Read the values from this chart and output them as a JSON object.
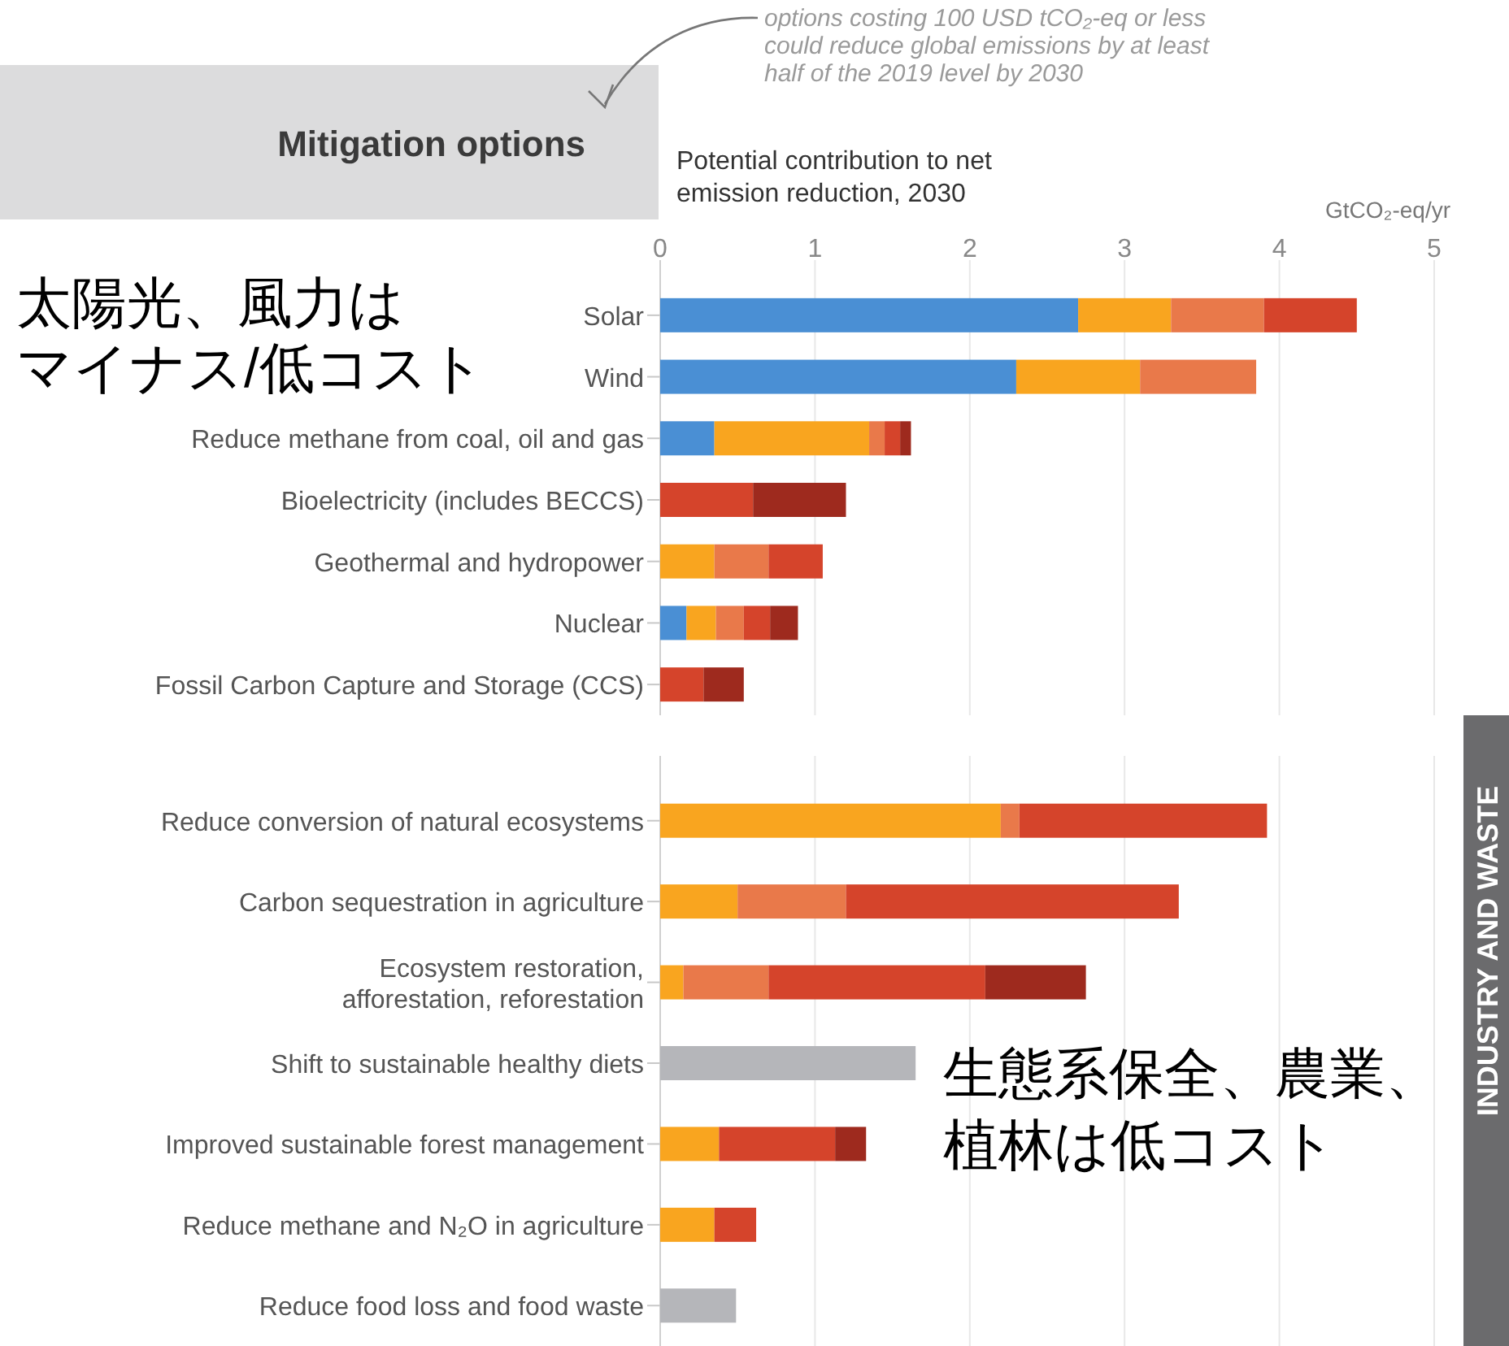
{
  "chart_data": [
    {
      "type": "bar",
      "orientation": "horizontal",
      "stacked": true,
      "title": "Mitigation options",
      "xlabel": "Potential contribution to net emission reduction, 2030",
      "annotations": [
        "options costing 100 USD tCO₂-eq or less could reduce global emissions by at least half of the 2019 level by 2030",
        "GtCO₂-eq/yr",
        "太陽光、風力はマイナス/低コスト"
      ],
      "categories": [
        "Solar",
        "Wind",
        "Reduce methane from coal, oil and gas",
        "Bioelectricity (includes BECCS)",
        "Geothermal and hydropower",
        "Nuclear",
        "Fossil Carbon Capture and Storage (CCS)"
      ],
      "series": [
        {
          "color": "#4a8fd4",
          "values": [
            2.7,
            2.3,
            0.35,
            null,
            null,
            0.17,
            null
          ]
        },
        {
          "color": "#f9a51f",
          "values": [
            0.6,
            0.8,
            1.0,
            null,
            0.35,
            0.19,
            null
          ]
        },
        {
          "color": "#e9794a",
          "values": [
            0.6,
            0.75,
            0.1,
            null,
            0.35,
            0.18,
            null
          ]
        },
        {
          "color": "#d5442b",
          "values": [
            0.6,
            null,
            0.1,
            0.6,
            0.35,
            0.17,
            0.28
          ]
        },
        {
          "color": "#9e2a1e",
          "values": [
            null,
            null,
            0.07,
            0.6,
            null,
            0.18,
            0.26
          ]
        }
      ],
      "xlim": [
        0,
        5
      ],
      "xticks": [
        0,
        1,
        2,
        3,
        4,
        5
      ],
      "grid": "x"
    },
    {
      "type": "bar",
      "orientation": "horizontal",
      "stacked": true,
      "tick_labels": false,
      "annotations": [
        "生態系保全、農業、植林は低コスト",
        "INDUSTRY AND WASTE"
      ],
      "categories": [
        "Reduce conversion of natural ecosystems",
        "Carbon sequestration in agriculture",
        "Ecosystem restoration,\nafforestation, reforestation",
        "Shift to sustainable healthy diets",
        "Improved sustainable forest management",
        "Reduce methane and N₂O in agriculture",
        "Reduce food loss and food waste"
      ],
      "series": [
        {
          "color": "#f9a51f",
          "values": [
            2.2,
            0.5,
            0.15,
            null,
            0.38,
            0.35,
            null
          ]
        },
        {
          "color": "#e9794a",
          "values": [
            0.12,
            0.7,
            0.55,
            null,
            null,
            null,
            null
          ]
        },
        {
          "color": "#d5442b",
          "values": [
            1.6,
            2.15,
            1.4,
            null,
            0.75,
            0.27,
            null
          ]
        },
        {
          "color": "#9e2a1e",
          "values": [
            null,
            null,
            0.65,
            null,
            0.2,
            null,
            null
          ]
        },
        {
          "color": "#b5b6ba",
          "values": [
            null,
            null,
            null,
            1.65,
            null,
            null,
            0.49
          ]
        }
      ],
      "xlim": [
        0,
        5
      ],
      "xticks": [
        0,
        1,
        2,
        3,
        4,
        5
      ],
      "grid": "x"
    }
  ]
}
